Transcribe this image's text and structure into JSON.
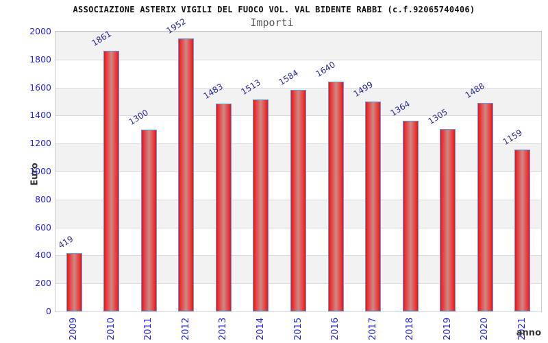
{
  "chart_data": {
    "type": "bar",
    "title": "ASSOCIAZIONE ASTERIX VIGILI DEL FUOCO VOL. VAL BIDENTE RABBI (c.f.92065740406)",
    "subtitle": "Importi",
    "xlabel": "anno",
    "ylabel": "Euro",
    "categories": [
      "2009",
      "2010",
      "2011",
      "2012",
      "2013",
      "2014",
      "2015",
      "2016",
      "2017",
      "2018",
      "2019",
      "2020",
      "2021"
    ],
    "values": [
      419,
      1861,
      1300,
      1952,
      1483,
      1513,
      1584,
      1640,
      1499,
      1364,
      1305,
      1488,
      1159
    ],
    "ylim": [
      0,
      2000
    ],
    "ytick_step": 200,
    "legend": "none",
    "grid": "alternating horizontal bands every 200 units",
    "colors": {
      "bar_edge": "#e31220",
      "bar_bright": "#ef2f2f",
      "bar_mid": "#cc8a86",
      "bar_border": "#55a2e0",
      "tick_label": "#2424dd",
      "value_label": "#2a2a98",
      "band_gray": "#f2f2f2",
      "band_white": "#ffffff",
      "gridline": "#dcdcdc",
      "title_color": "#111111",
      "subtitle_color": "#555555",
      "axis_title_color": "#333333"
    }
  }
}
